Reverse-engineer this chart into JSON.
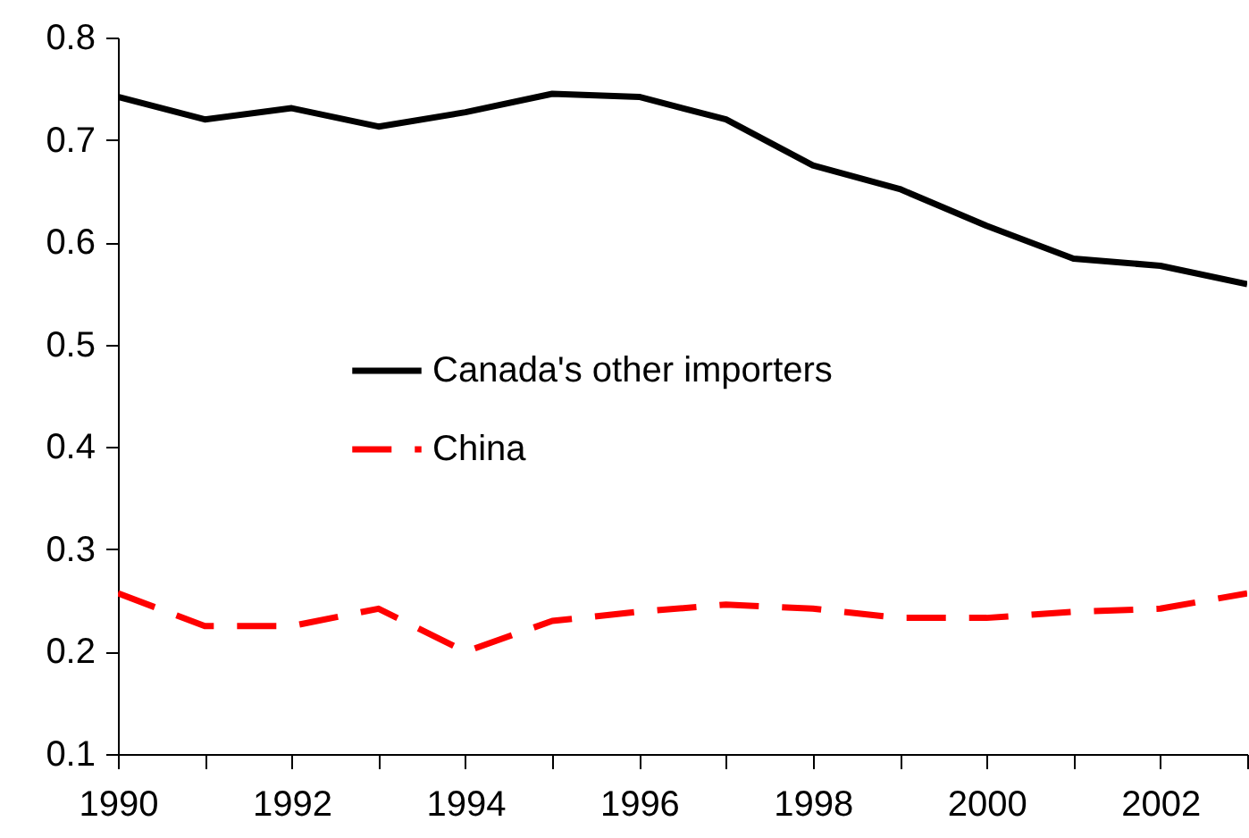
{
  "chart_data": {
    "type": "line",
    "x": [
      1990,
      1991,
      1992,
      1993,
      1994,
      1995,
      1996,
      1997,
      1998,
      1999,
      2000,
      2001,
      2002,
      2003
    ],
    "series": [
      {
        "name": "Canada's other importers",
        "color": "#000000",
        "line_style": "solid",
        "values": [
          0.742,
          0.72,
          0.731,
          0.713,
          0.727,
          0.745,
          0.742,
          0.72,
          0.675,
          0.652,
          0.616,
          0.584,
          0.577,
          0.559
        ]
      },
      {
        "name": "China",
        "color": "#ff0000",
        "line_style": "dashed",
        "values": [
          0.257,
          0.225,
          0.225,
          0.242,
          0.2,
          0.23,
          0.239,
          0.246,
          0.242,
          0.233,
          0.233,
          0.239,
          0.242,
          0.257
        ]
      }
    ],
    "xlim": [
      1990,
      2003
    ],
    "xticks": [
      1990,
      {
        "value": 1991,
        "label": null
      },
      1992,
      {
        "value": 1993,
        "label": null
      },
      1994,
      {
        "value": 1995,
        "label": null
      },
      1996,
      {
        "value": 1997,
        "label": null
      },
      1998,
      {
        "value": 1999,
        "label": null
      },
      2000,
      {
        "value": 2001,
        "label": null
      },
      2002,
      {
        "value": 2003,
        "label": null
      }
    ],
    "ylim": [
      0.1,
      0.8
    ],
    "yticks": [
      0.1,
      0.2,
      0.3,
      0.4,
      0.5,
      0.6,
      0.7,
      0.8
    ],
    "grid": false,
    "legend": "center"
  }
}
